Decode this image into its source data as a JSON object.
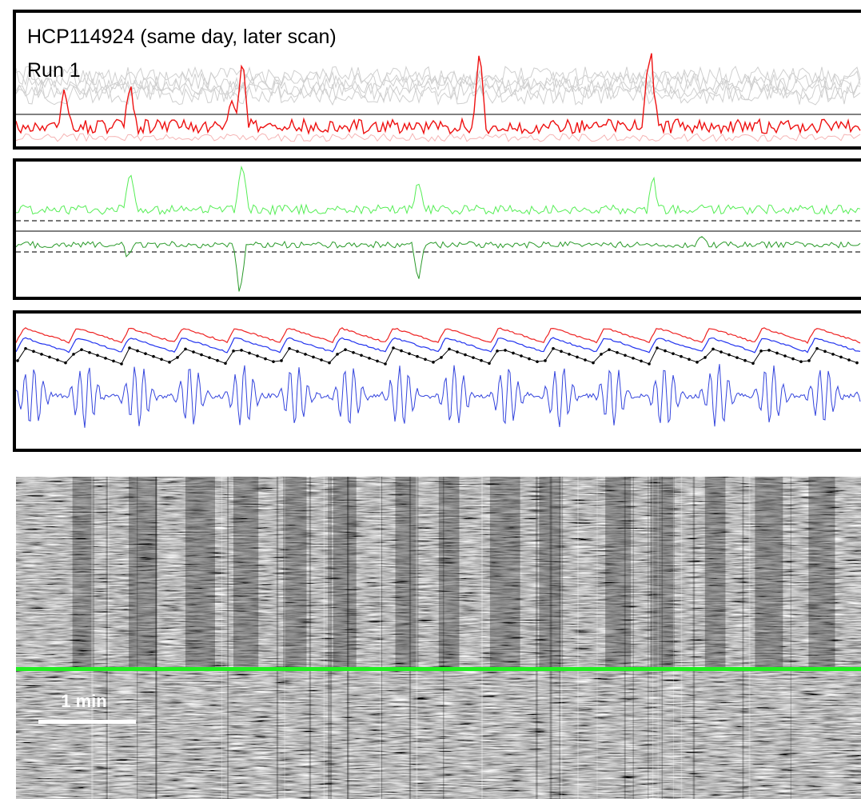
{
  "header": {
    "title": "HCP114924 (same day, later scan)",
    "run": "Run 1"
  },
  "grayplot": {
    "scale_label": "1 min"
  }
}
